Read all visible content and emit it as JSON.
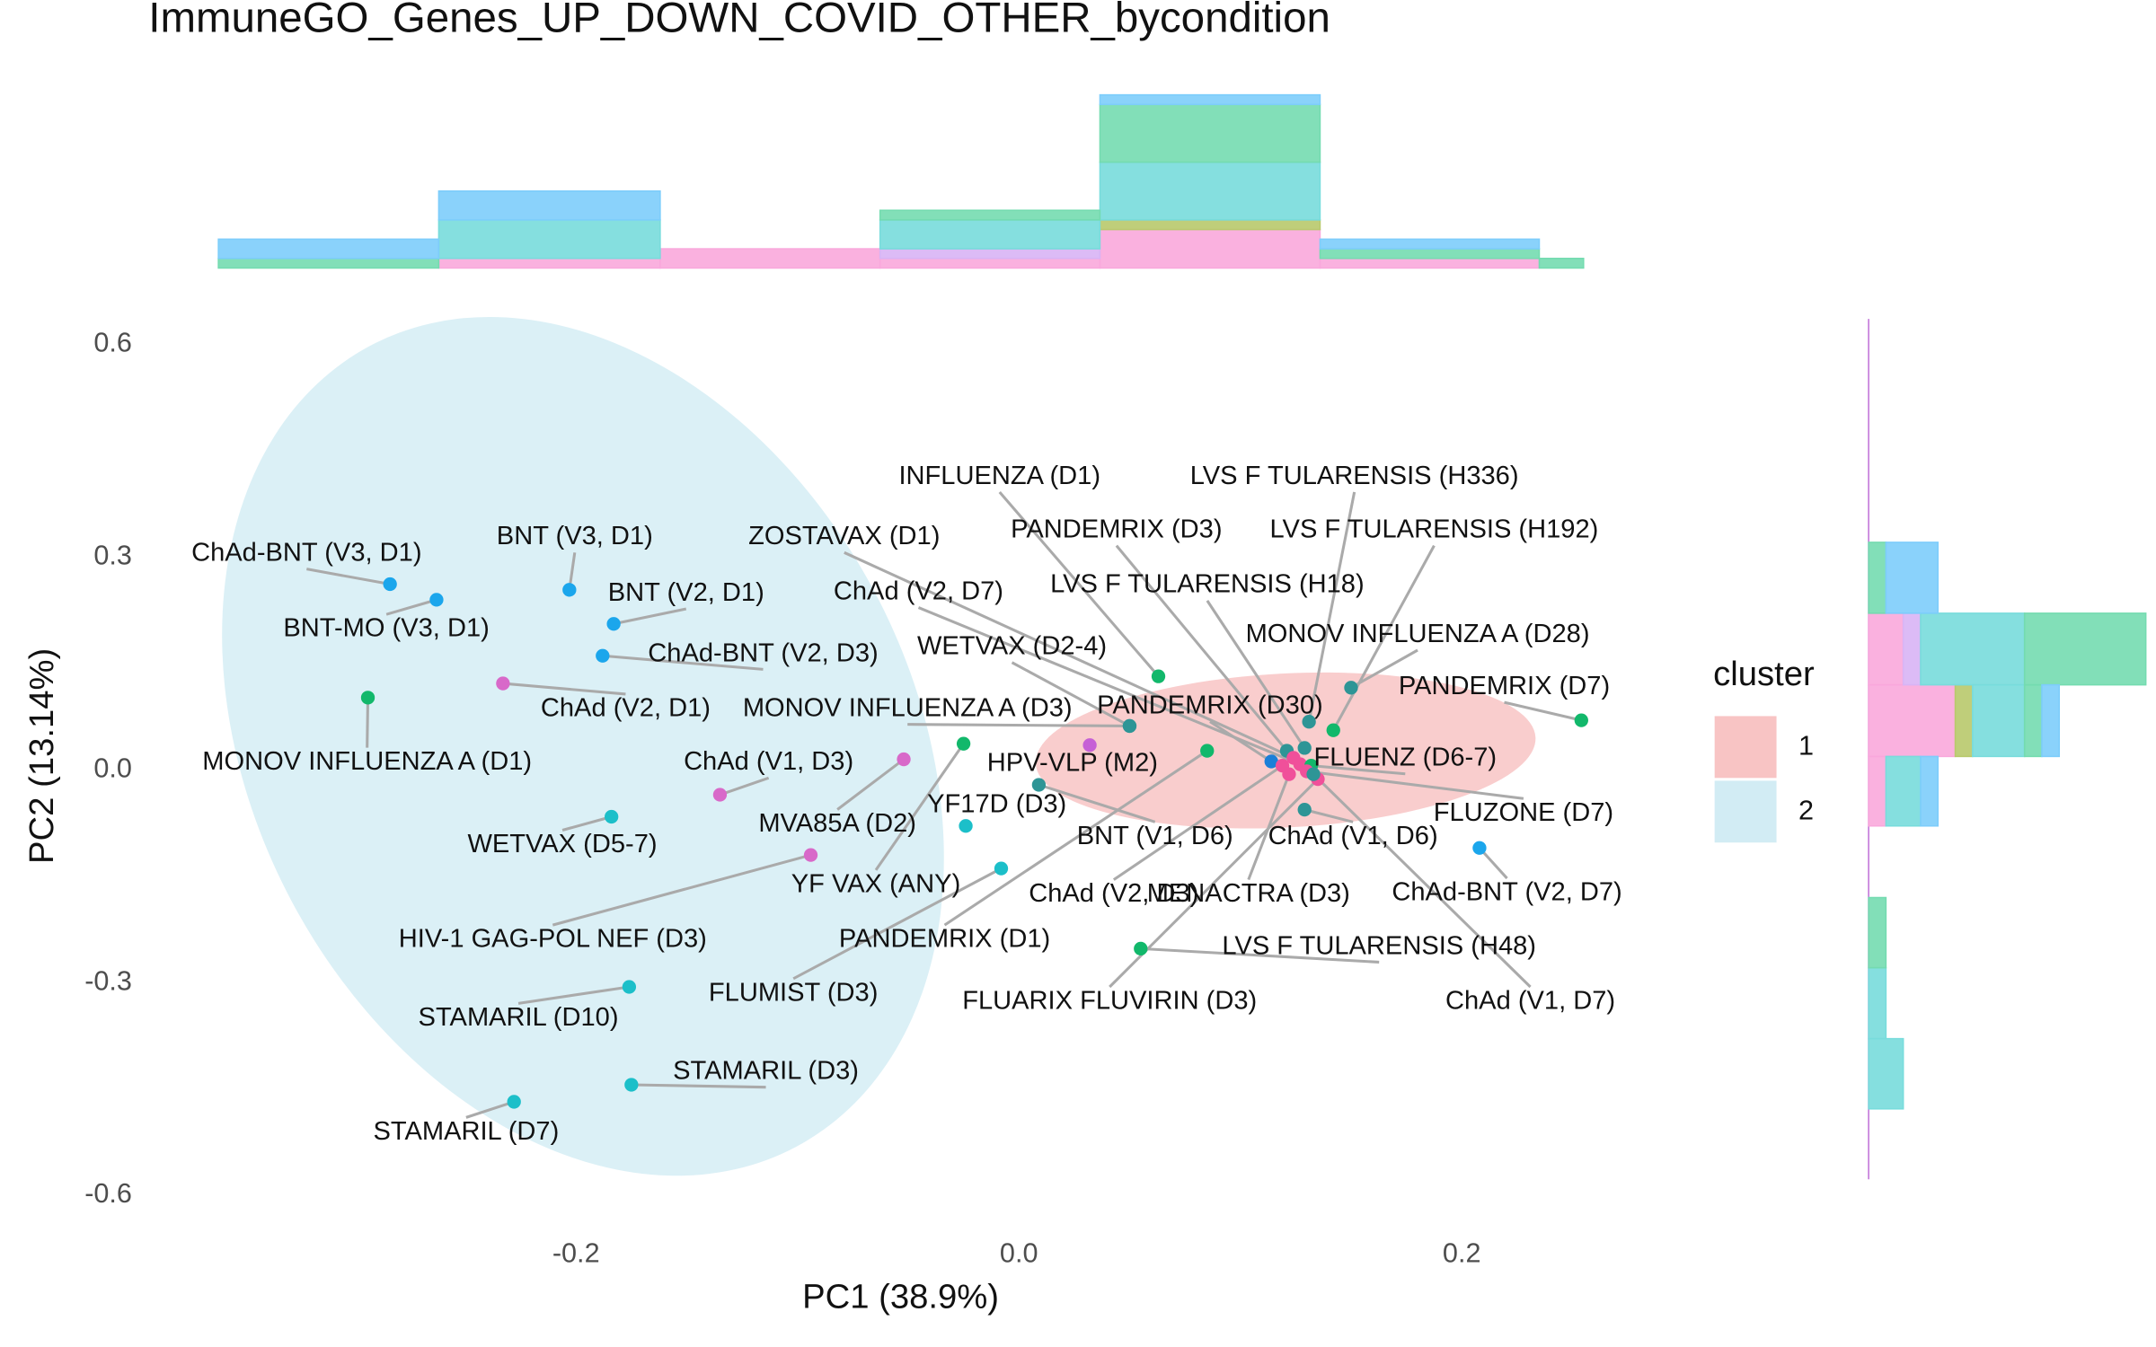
{
  "chart_data": [
    {
      "type": "scatter",
      "title": "ImmuneGO_Genes_UP_DOWN_COVID_OTHER_bycondition",
      "xlabel": "PC1 (38.9%)",
      "ylabel": "PC2 (13.14%)",
      "xlim": [
        -0.385,
        0.285
      ],
      "ylim": [
        -0.62,
        0.64
      ],
      "xticks": [
        -0.2,
        {
          "value": 0,
          "label": "0.0"
        },
        0.2
      ],
      "yticks": [
        -0.6,
        -0.3,
        {
          "value": 0,
          "label": "0.0"
        },
        0.3,
        0.6
      ],
      "point_labels": [
        "ChAd-BNT (V3, D1)",
        "BNT-MO (V3, D1)",
        "BNT (V3, D1)",
        "BNT (V2, D1)",
        "ChAd-BNT (V2, D3)",
        "ChAd (V2, D1)",
        "MONOV INFLUENZA A (D1)",
        "WETVAX (D5-7)",
        "ChAd (V1, D3)",
        "MVA85A (D2)",
        "HIV-1 GAG-POL NEF (D3)",
        "STAMARIL (D10)",
        "STAMARIL (D3)",
        "STAMARIL (D7)",
        "YF17D (D3)",
        "YF VAX (ANY)",
        "FLUMIST (D3)",
        "PANDEMRIX (D1)",
        "HPV-VLP (M2)",
        "BNT (V1, D6)",
        "WETVAX (D2-4)",
        "MONOV INFLUENZA A (D3)",
        "INFLUENZA (D1)",
        "PANDEMRIX (D3)",
        "ZOSTAVAX (D1)",
        "ChAd (V2, D7)",
        "LVS F TULARENSIS (H336)",
        "LVS F TULARENSIS (H192)",
        "LVS F TULARENSIS (H18)",
        "MONOV INFLUENZA A (D28)",
        "PANDEMRIX (D7)",
        "PANDEMRIX (D30)",
        "FLUENZ (D6-7)",
        "FLUZONE (D7)",
        "ChAd (V1, D6)",
        "ChAd-BNT (V2, D7)",
        "MENACTRA (D3)",
        "ChAd (V2, D3)",
        "LVS F TULARENSIS (H48)",
        "FLUARIX FLUVIRIN (D3)",
        "ChAd (V1, D7)"
      ],
      "x": [
        -0.284,
        -0.263,
        -0.203,
        -0.183,
        -0.188,
        -0.233,
        -0.294,
        -0.184,
        -0.135,
        -0.052,
        -0.094,
        -0.176,
        -0.175,
        -0.228,
        -0.024,
        -0.025,
        -0.008,
        0.085,
        0.032,
        0.009,
        0.05,
        0.05,
        0.063,
        0.121,
        0.124,
        0.127,
        0.131,
        0.142,
        0.129,
        0.15,
        0.254,
        0.114,
        0.132,
        0.13,
        0.129,
        0.208,
        0.122,
        0.119,
        0.055,
        0.135,
        0.133
      ],
      "y": [
        0.262,
        0.24,
        0.254,
        0.206,
        0.161,
        0.122,
        0.102,
        -0.066,
        -0.035,
        0.015,
        -0.12,
        -0.306,
        -0.444,
        -0.468,
        -0.079,
        0.037,
        -0.139,
        0.027,
        0.035,
        -0.021,
        0.062,
        0.062,
        0.132,
        0.027,
        0.017,
        0.008,
        0.068,
        0.056,
        0.031,
        0.116,
        0.07,
        0.012,
        0.006,
        -0.002,
        -0.056,
        -0.11,
        -0.006,
        0.006,
        -0.252,
        -0.013,
        -0.006
      ],
      "point_colors": [
        "#1ba6ec",
        "#1ba6ec",
        "#1ba6ec",
        "#1ba6ec",
        "#1ba6ec",
        "#d869c9",
        "#12b86b",
        "#1cbfc9",
        "#d869c9",
        "#d869c9",
        "#d869c9",
        "#1cbfc9",
        "#1cbfc9",
        "#1cbfc9",
        "#1cbfc9",
        "#12b86b",
        "#1cbfc9",
        "#12b86b",
        "#c660d6",
        "#2e9596",
        "#2e9596",
        "#2e9596",
        "#12b86b",
        "#2e9596",
        "#f0509a",
        "#f0509a",
        "#2e9596",
        "#12b86b",
        "#2e9596",
        "#2e9596",
        "#12b86b",
        "#1b7fd8",
        "#12b86b",
        "#f0509a",
        "#2e9596",
        "#1ba6ec",
        "#f0509a",
        "#f0509a",
        "#12b86b",
        "#f0509a",
        "#2e9596"
      ],
      "legend": {
        "title": "cluster",
        "entries": [
          {
            "label": "1",
            "color": "#f8c4c4"
          },
          {
            "label": "2",
            "color": "#d2ecf4"
          }
        ]
      }
    },
    {
      "type": "histogram",
      "orientation": "vertical",
      "bins": [
        -0.3615,
        -0.262,
        -0.162,
        -0.0627,
        0.0366,
        0.136,
        0.235,
        0.255
      ],
      "series": [
        {
          "color": "#f9a8dc",
          "values": [
            0,
            1,
            2,
            1,
            4,
            1,
            0
          ]
        },
        {
          "color": "#d8b4f5",
          "values": [
            0,
            0,
            0,
            1,
            0,
            0,
            0
          ]
        },
        {
          "color": "#b8c96c",
          "values": [
            0,
            0,
            0,
            0,
            1,
            0,
            0
          ]
        },
        {
          "color": "#78dcdc",
          "values": [
            0,
            4,
            0,
            3,
            6,
            0,
            0
          ]
        },
        {
          "color": "#74dbb0",
          "values": [
            1,
            0,
            0,
            1,
            6,
            1,
            1
          ]
        },
        {
          "color": "#7dcdfb",
          "values": [
            2,
            3,
            0,
            0,
            1,
            1,
            0
          ]
        }
      ]
    },
    {
      "type": "histogram",
      "orientation": "horizontal",
      "bins": [
        -0.478,
        -0.379,
        -0.279,
        -0.18,
        -0.079,
        0.019,
        0.12,
        0.221,
        0.321
      ],
      "series": [
        {
          "color": "#f9a8dc",
          "values": [
            0,
            0,
            0,
            0,
            1,
            5,
            2,
            0
          ]
        },
        {
          "color": "#d8b4f5",
          "values": [
            0,
            0,
            0,
            0,
            0,
            0,
            1,
            0
          ]
        },
        {
          "color": "#b8c96c",
          "values": [
            0,
            0,
            0,
            0,
            0,
            1,
            0,
            0
          ]
        },
        {
          "color": "#78dcdc",
          "values": [
            2,
            1,
            0,
            0,
            2,
            3,
            6,
            0
          ]
        },
        {
          "color": "#74dbb0",
          "values": [
            0,
            0,
            1,
            0,
            0,
            1,
            7,
            1
          ]
        },
        {
          "color": "#7dcdfb",
          "values": [
            0,
            0,
            0,
            0,
            1,
            1,
            0,
            3
          ]
        }
      ]
    }
  ]
}
